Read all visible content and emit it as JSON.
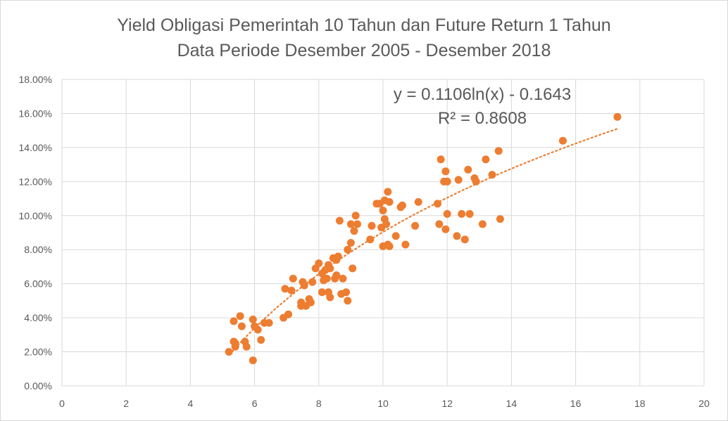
{
  "chart_data": {
    "type": "scatter",
    "title": "Yield Obligasi Pemerintah 10 Tahun dan Future Return 1 Tahun",
    "subtitle": "Data Periode Desember 2005 - Desember 2018",
    "xlabel": "",
    "ylabel": "",
    "xlim": [
      0,
      20
    ],
    "ylim": [
      0,
      0.18
    ],
    "x_ticks": [
      "0",
      "2",
      "4",
      "6",
      "8",
      "10",
      "12",
      "14",
      "16",
      "18",
      "20"
    ],
    "y_ticks": [
      "0.00%",
      "2.00%",
      "4.00%",
      "6.00%",
      "8.00%",
      "10.00%",
      "12.00%",
      "14.00%",
      "16.00%",
      "18.00%"
    ],
    "grid": true,
    "legend": "none",
    "marker_color": "#ED7D31",
    "trendline": {
      "type": "logarithmic",
      "a": 0.1106,
      "b": -0.1643,
      "x_range": [
        5.3,
        17.3
      ],
      "equation": "y = 0.1106ln(x) - 0.1643",
      "r_squared": "R² = 0.8608",
      "color": "#ED7D31"
    },
    "points": [
      [
        5.2,
        0.02
      ],
      [
        5.35,
        0.038
      ],
      [
        5.35,
        0.026
      ],
      [
        5.4,
        0.025
      ],
      [
        5.4,
        0.023
      ],
      [
        5.55,
        0.041
      ],
      [
        5.6,
        0.035
      ],
      [
        5.7,
        0.026
      ],
      [
        5.75,
        0.023
      ],
      [
        5.95,
        0.015
      ],
      [
        5.95,
        0.039
      ],
      [
        6.0,
        0.035
      ],
      [
        6.1,
        0.033
      ],
      [
        6.2,
        0.027
      ],
      [
        6.3,
        0.037
      ],
      [
        6.45,
        0.037
      ],
      [
        6.9,
        0.04
      ],
      [
        6.95,
        0.057
      ],
      [
        7.05,
        0.042
      ],
      [
        7.15,
        0.056
      ],
      [
        7.2,
        0.063
      ],
      [
        7.45,
        0.047
      ],
      [
        7.45,
        0.049
      ],
      [
        7.5,
        0.061
      ],
      [
        7.55,
        0.059
      ],
      [
        7.6,
        0.047
      ],
      [
        7.7,
        0.051
      ],
      [
        7.75,
        0.049
      ],
      [
        7.8,
        0.061
      ],
      [
        7.9,
        0.069
      ],
      [
        8.0,
        0.072
      ],
      [
        8.1,
        0.055
      ],
      [
        8.1,
        0.066
      ],
      [
        8.15,
        0.062
      ],
      [
        8.2,
        0.068
      ],
      [
        8.25,
        0.063
      ],
      [
        8.3,
        0.055
      ],
      [
        8.3,
        0.071
      ],
      [
        8.35,
        0.069
      ],
      [
        8.35,
        0.052
      ],
      [
        8.45,
        0.075
      ],
      [
        8.5,
        0.063
      ],
      [
        8.55,
        0.074
      ],
      [
        8.55,
        0.065
      ],
      [
        8.6,
        0.076
      ],
      [
        8.65,
        0.097
      ],
      [
        8.7,
        0.054
      ],
      [
        8.75,
        0.063
      ],
      [
        8.85,
        0.055
      ],
      [
        8.9,
        0.08
      ],
      [
        8.9,
        0.05
      ],
      [
        9.0,
        0.095
      ],
      [
        9.0,
        0.084
      ],
      [
        9.05,
        0.069
      ],
      [
        9.1,
        0.091
      ],
      [
        9.15,
        0.1
      ],
      [
        9.2,
        0.095
      ],
      [
        9.6,
        0.086
      ],
      [
        9.65,
        0.094
      ],
      [
        9.8,
        0.107
      ],
      [
        9.9,
        0.107
      ],
      [
        9.95,
        0.093
      ],
      [
        10.0,
        0.103
      ],
      [
        10.0,
        0.082
      ],
      [
        10.05,
        0.109
      ],
      [
        10.05,
        0.098
      ],
      [
        10.1,
        0.095
      ],
      [
        10.15,
        0.114
      ],
      [
        10.15,
        0.083
      ],
      [
        10.2,
        0.108
      ],
      [
        10.2,
        0.082
      ],
      [
        10.4,
        0.088
      ],
      [
        10.55,
        0.105
      ],
      [
        10.6,
        0.106
      ],
      [
        10.7,
        0.083
      ],
      [
        11.0,
        0.094
      ],
      [
        11.1,
        0.108
      ],
      [
        11.7,
        0.107
      ],
      [
        11.75,
        0.095
      ],
      [
        11.8,
        0.133
      ],
      [
        11.9,
        0.12
      ],
      [
        11.95,
        0.126
      ],
      [
        11.95,
        0.092
      ],
      [
        12.0,
        0.12
      ],
      [
        12.0,
        0.101
      ],
      [
        12.3,
        0.088
      ],
      [
        12.35,
        0.121
      ],
      [
        12.45,
        0.101
      ],
      [
        12.55,
        0.086
      ],
      [
        12.65,
        0.127
      ],
      [
        12.7,
        0.101
      ],
      [
        12.85,
        0.122
      ],
      [
        12.9,
        0.12
      ],
      [
        13.1,
        0.095
      ],
      [
        13.2,
        0.133
      ],
      [
        13.4,
        0.124
      ],
      [
        13.6,
        0.138
      ],
      [
        13.65,
        0.098
      ],
      [
        15.6,
        0.144
      ],
      [
        17.3,
        0.158
      ]
    ]
  }
}
